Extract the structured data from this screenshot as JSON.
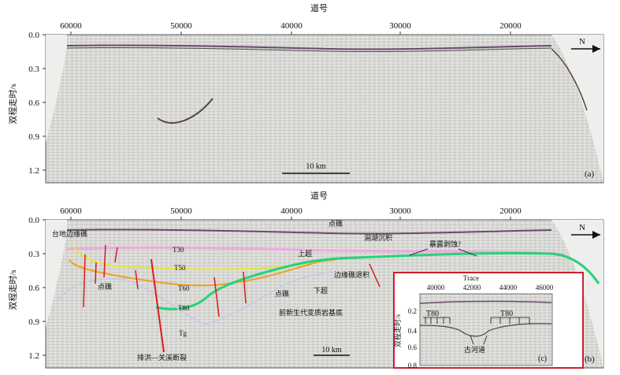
{
  "panel_a": {
    "top_axis_title": "道号",
    "y_axis_title": "双程走时/s",
    "x_ticks": [
      "60000",
      "50000",
      "40000",
      "30000",
      "20000"
    ],
    "y_ticks": [
      "0.0",
      "0.3",
      "0.6",
      "0.9",
      "1.2"
    ],
    "north_label": "N",
    "scale_bar": "10 km",
    "panel_label": "(a)"
  },
  "panel_b": {
    "top_axis_title": "道号",
    "y_axis_title": "双程走时/s",
    "x_ticks": [
      "60000",
      "50000",
      "40000",
      "30000",
      "20000"
    ],
    "y_ticks": [
      "0.0",
      "0.3",
      "0.6",
      "0.9",
      "1.2"
    ],
    "north_label": "N",
    "scale_bar": "10 km",
    "panel_label": "(b)",
    "annotations": {
      "platform_reef": "台地边缘礁",
      "reef_top": "点礁",
      "lagoon": "潟湖沉积",
      "exposure": "暴露剥蚀?",
      "onlap": "上超",
      "downlap": "下超",
      "reef_margin": "边缘礁退积",
      "point_reef_left": "点礁",
      "point_reef_mid": "点礁",
      "basement": "前新生代变质岩基底",
      "fault": "排洪—关溪断裂",
      "T30": "T30",
      "T50": "T50",
      "T60": "T60",
      "T80": "T80",
      "Tg": "Tg"
    }
  },
  "inset": {
    "x_title": "Trace",
    "y_title": "双程走时/s",
    "x_ticks": [
      "40000",
      "42000",
      "44000",
      "46000"
    ],
    "y_ticks": [
      "0.2",
      "0.4",
      "0.6",
      "0.8"
    ],
    "label_left": "T80",
    "label_right": "T80",
    "channel": "古河道",
    "panel_label": "(c)"
  }
}
